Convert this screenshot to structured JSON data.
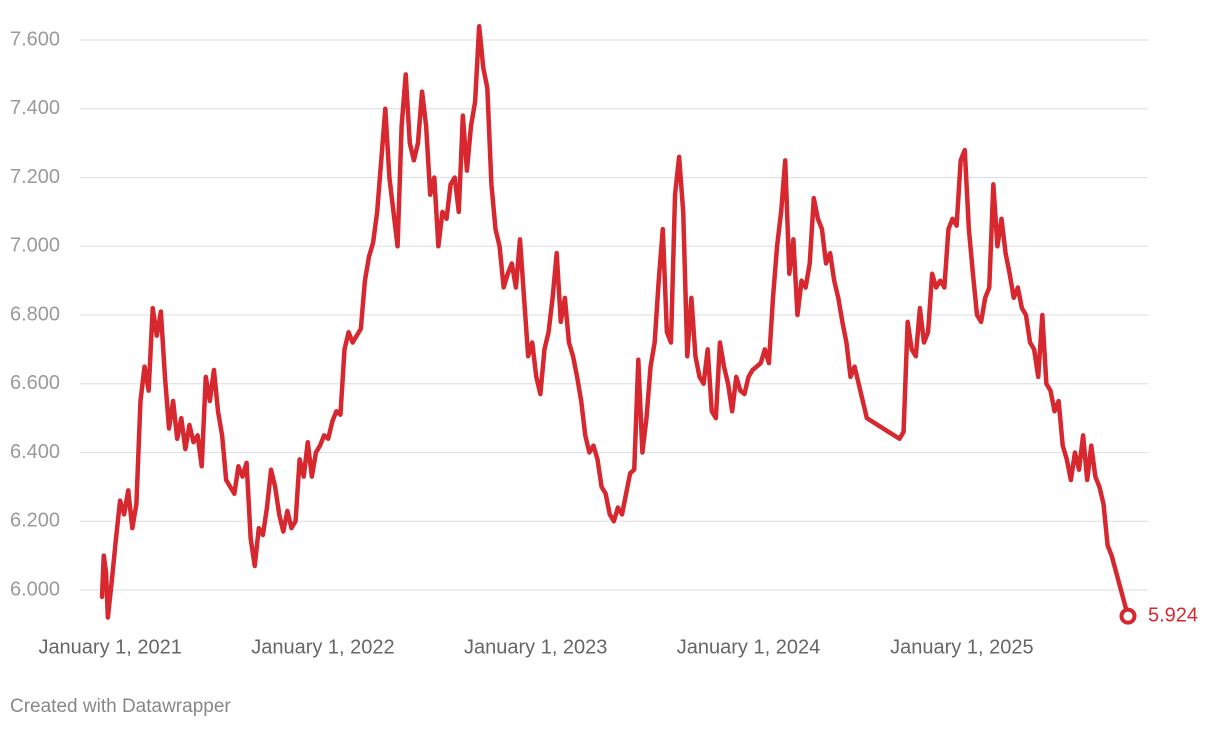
{
  "chart_data": {
    "type": "line",
    "color": "#d7282f",
    "grid": true,
    "xlim": [
      "2020-12-18",
      "2025-10-13"
    ],
    "xticks": [
      {
        "value": "2021-01-01",
        "label": "January 1, 2021"
      },
      {
        "value": "2022-01-01",
        "label": "January 1, 2022"
      },
      {
        "value": "2023-01-01",
        "label": "January 1, 2023"
      },
      {
        "value": "2024-01-01",
        "label": "January 1, 2024"
      },
      {
        "value": "2025-01-01",
        "label": "January 1, 2025"
      }
    ],
    "ylim": [
      5.9,
      7.66
    ],
    "yticks": [
      {
        "value": 6,
        "label": "6.000"
      },
      {
        "value": 6.2,
        "label": "6.200"
      },
      {
        "value": 6.4,
        "label": "6.400"
      },
      {
        "value": 6.6,
        "label": "6.600"
      },
      {
        "value": 6.8,
        "label": "6.800"
      },
      {
        "value": 7,
        "label": "7.000"
      },
      {
        "value": 7.2,
        "label": "7.200"
      },
      {
        "value": 7.4,
        "label": "7.400"
      },
      {
        "value": 7.6,
        "label": "7.600"
      }
    ],
    "x": [
      "2020-12-18",
      "2020-12-21",
      "2020-12-25",
      "2020-12-28",
      "2021-01-04",
      "2021-01-11",
      "2021-01-18",
      "2021-01-25",
      "2021-02-01",
      "2021-02-08",
      "2021-02-15",
      "2021-02-22",
      "2021-03-01",
      "2021-03-08",
      "2021-03-15",
      "2021-03-22",
      "2021-03-29",
      "2021-04-05",
      "2021-04-12",
      "2021-04-19",
      "2021-04-26",
      "2021-05-03",
      "2021-05-10",
      "2021-05-17",
      "2021-05-24",
      "2021-05-31",
      "2021-06-07",
      "2021-06-14",
      "2021-06-21",
      "2021-06-28",
      "2021-07-05",
      "2021-07-12",
      "2021-07-19",
      "2021-07-26",
      "2021-08-02",
      "2021-08-09",
      "2021-08-16",
      "2021-08-23",
      "2021-08-30",
      "2021-09-06",
      "2021-09-13",
      "2021-09-20",
      "2021-09-27",
      "2021-10-04",
      "2021-10-11",
      "2021-10-18",
      "2021-10-25",
      "2021-11-01",
      "2021-11-08",
      "2021-11-15",
      "2021-11-22",
      "2021-11-29",
      "2021-12-06",
      "2021-12-13",
      "2021-12-20",
      "2021-12-27",
      "2022-01-03",
      "2022-01-10",
      "2022-01-17",
      "2022-01-24",
      "2022-01-31",
      "2022-02-07",
      "2022-02-14",
      "2022-02-21",
      "2022-02-28",
      "2022-03-07",
      "2022-03-14",
      "2022-03-21",
      "2022-03-28",
      "2022-04-04",
      "2022-04-11",
      "2022-04-18",
      "2022-04-25",
      "2022-05-02",
      "2022-05-09",
      "2022-05-16",
      "2022-05-23",
      "2022-05-30",
      "2022-06-06",
      "2022-06-13",
      "2022-06-20",
      "2022-06-27",
      "2022-07-04",
      "2022-07-11",
      "2022-07-18",
      "2022-07-25",
      "2022-08-01",
      "2022-08-08",
      "2022-08-15",
      "2022-08-22",
      "2022-08-29",
      "2022-09-05",
      "2022-09-12",
      "2022-09-19",
      "2022-09-26",
      "2022-10-03",
      "2022-10-10",
      "2022-10-17",
      "2022-10-24",
      "2022-10-31",
      "2022-11-07",
      "2022-11-14",
      "2022-11-21",
      "2022-11-28",
      "2022-12-05",
      "2022-12-12",
      "2022-12-19",
      "2022-12-26",
      "2023-01-02",
      "2023-01-09",
      "2023-01-16",
      "2023-01-23",
      "2023-01-30",
      "2023-02-06",
      "2023-02-13",
      "2023-02-20",
      "2023-02-27",
      "2023-03-06",
      "2023-03-13",
      "2023-03-20",
      "2023-03-27",
      "2023-04-03",
      "2023-04-10",
      "2023-04-17",
      "2023-04-24",
      "2023-05-01",
      "2023-05-08",
      "2023-05-15",
      "2023-05-22",
      "2023-05-29",
      "2023-06-05",
      "2023-06-12",
      "2023-06-19",
      "2023-06-26",
      "2023-07-03",
      "2023-07-10",
      "2023-07-17",
      "2023-07-24",
      "2023-07-31",
      "2023-08-07",
      "2023-08-14",
      "2023-08-21",
      "2023-08-28",
      "2023-09-04",
      "2023-09-11",
      "2023-09-18",
      "2023-09-25",
      "2023-10-02",
      "2023-10-09",
      "2023-10-16",
      "2023-10-23",
      "2023-10-30",
      "2023-11-06",
      "2023-11-13",
      "2023-11-20",
      "2023-11-27",
      "2023-12-04",
      "2023-12-11",
      "2023-12-18",
      "2023-12-25",
      "2024-01-01",
      "2024-01-08",
      "2024-01-15",
      "2024-01-22",
      "2024-01-29",
      "2024-02-05",
      "2024-02-12",
      "2024-02-19",
      "2024-02-26",
      "2024-03-04",
      "2024-03-11",
      "2024-03-18",
      "2024-03-25",
      "2024-04-01",
      "2024-04-08",
      "2024-04-15",
      "2024-04-22",
      "2024-04-29",
      "2024-05-06",
      "2024-05-13",
      "2024-05-20",
      "2024-05-27",
      "2024-06-03",
      "2024-06-10",
      "2024-06-17",
      "2024-06-24",
      "2024-07-01",
      "2024-07-08",
      "2024-07-15",
      "2024-07-22",
      "2024-09-16",
      "2024-09-23",
      "2024-09-30",
      "2024-10-07",
      "2024-10-14",
      "2024-10-21",
      "2024-10-28",
      "2024-11-04",
      "2024-11-11",
      "2024-11-18",
      "2024-11-25",
      "2024-12-02",
      "2024-12-09",
      "2024-12-16",
      "2024-12-23",
      "2024-12-30",
      "2025-01-06",
      "2025-01-13",
      "2025-01-20",
      "2025-01-27",
      "2025-02-03",
      "2025-02-10",
      "2025-02-17",
      "2025-02-24",
      "2025-03-03",
      "2025-03-10",
      "2025-03-17",
      "2025-03-24",
      "2025-03-31",
      "2025-04-07",
      "2025-04-14",
      "2025-04-21",
      "2025-04-28",
      "2025-05-05",
      "2025-05-12",
      "2025-05-19",
      "2025-05-26",
      "2025-06-02",
      "2025-06-09",
      "2025-06-16",
      "2025-06-23",
      "2025-06-30",
      "2025-07-07",
      "2025-07-14",
      "2025-07-21",
      "2025-07-28",
      "2025-08-04",
      "2025-08-11",
      "2025-08-18",
      "2025-08-25",
      "2025-09-01",
      "2025-09-08",
      "2025-09-15",
      "2025-10-13"
    ],
    "values": [
      5.98,
      6.1,
      6.05,
      5.92,
      6.03,
      6.15,
      6.26,
      6.22,
      6.29,
      6.18,
      6.25,
      6.55,
      6.65,
      6.58,
      6.82,
      6.74,
      6.81,
      6.62,
      6.47,
      6.55,
      6.44,
      6.5,
      6.41,
      6.48,
      6.43,
      6.45,
      6.36,
      6.62,
      6.55,
      6.64,
      6.52,
      6.45,
      6.32,
      6.3,
      6.28,
      6.36,
      6.33,
      6.37,
      6.15,
      6.07,
      6.18,
      6.16,
      6.24,
      6.35,
      6.3,
      6.22,
      6.17,
      6.23,
      6.18,
      6.2,
      6.38,
      6.33,
      6.43,
      6.33,
      6.4,
      6.42,
      6.45,
      6.44,
      6.49,
      6.52,
      6.51,
      6.7,
      6.75,
      6.72,
      6.74,
      6.76,
      6.9,
      6.97,
      7.01,
      7.1,
      7.25,
      7.4,
      7.2,
      7.1,
      7.0,
      7.35,
      7.5,
      7.3,
      7.25,
      7.3,
      7.45,
      7.35,
      7.15,
      7.2,
      7.0,
      7.1,
      7.08,
      7.18,
      7.2,
      7.1,
      7.38,
      7.22,
      7.35,
      7.42,
      7.64,
      7.52,
      7.46,
      7.18,
      7.05,
      7.0,
      6.88,
      6.92,
      6.95,
      6.88,
      7.02,
      6.85,
      6.68,
      6.72,
      6.62,
      6.57,
      6.7,
      6.75,
      6.85,
      6.98,
      6.78,
      6.85,
      6.72,
      6.68,
      6.62,
      6.55,
      6.45,
      6.4,
      6.42,
      6.38,
      6.3,
      6.28,
      6.22,
      6.2,
      6.24,
      6.22,
      6.28,
      6.34,
      6.35,
      6.67,
      6.4,
      6.5,
      6.65,
      6.72,
      6.9,
      7.05,
      6.75,
      6.72,
      7.15,
      7.26,
      7.1,
      6.68,
      6.85,
      6.68,
      6.62,
      6.6,
      6.7,
      6.52,
      6.5,
      6.72,
      6.65,
      6.6,
      6.52,
      6.62,
      6.58,
      6.57,
      6.62,
      6.64,
      6.65,
      6.66,
      6.7,
      6.66,
      6.85,
      7.0,
      7.1,
      7.25,
      6.92,
      7.02,
      6.8,
      6.9,
      6.88,
      6.95,
      7.14,
      7.08,
      7.05,
      6.95,
      6.98,
      6.9,
      6.85,
      6.78,
      6.72,
      6.62,
      6.65,
      6.6,
      6.55,
      6.5,
      6.44,
      6.46,
      6.78,
      6.7,
      6.68,
      6.82,
      6.72,
      6.75,
      6.92,
      6.88,
      6.9,
      6.88,
      7.05,
      7.08,
      7.06,
      7.25,
      7.28,
      7.05,
      6.92,
      6.8,
      6.78,
      6.85,
      6.88,
      7.18,
      7.0,
      7.08,
      6.98,
      6.92,
      6.85,
      6.88,
      6.82,
      6.8,
      6.72,
      6.7,
      6.62,
      6.8,
      6.6,
      6.58,
      6.52,
      6.55,
      6.42,
      6.38,
      6.32,
      6.4,
      6.35,
      6.45,
      6.32,
      6.42,
      6.33,
      6.3,
      6.25,
      6.13,
      6.1,
      5.924
    ]
  },
  "footer": "Created with Datawrapper"
}
